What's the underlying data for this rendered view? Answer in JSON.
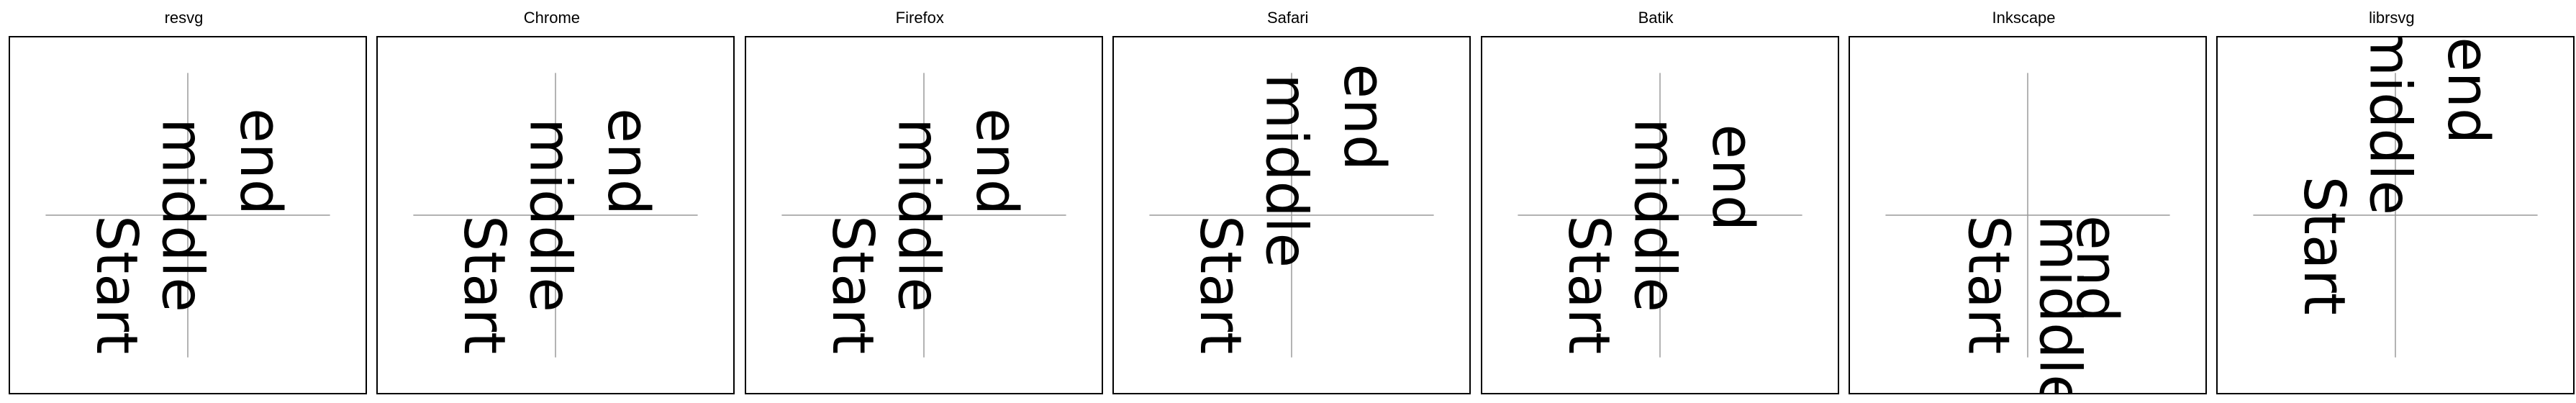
{
  "panels": [
    {
      "title": "resvg",
      "texts": [
        "Start",
        "middle",
        "end"
      ]
    },
    {
      "title": "Chrome",
      "texts": [
        "Start",
        "middle",
        "end"
      ]
    },
    {
      "title": "Firefox",
      "texts": [
        "Start",
        "middle",
        "end"
      ]
    },
    {
      "title": "Safari",
      "texts": [
        "Start",
        "middle",
        "end"
      ]
    },
    {
      "title": "Batik",
      "texts": [
        "Start",
        "middle",
        "end"
      ]
    },
    {
      "title": "Inkscape",
      "texts": [
        "Start",
        "middle",
        "end"
      ]
    },
    {
      "title": "librsvg",
      "texts": [
        "Start",
        "middle",
        "end"
      ]
    }
  ]
}
